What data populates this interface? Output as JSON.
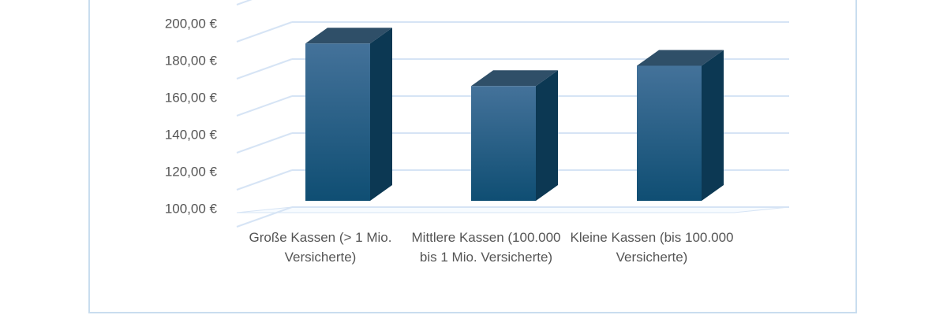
{
  "chart_data": {
    "type": "bar3d",
    "categories": [
      "Große Kassen (> 1 Mio. Versicherte)",
      "Mittlere Kassen (100.000 bis 1 Mio. Versicherte)",
      "Kleine Kassen (bis 100.000 Versicherte)"
    ],
    "values": [
      185,
      162,
      173
    ],
    "color": "#1a5a82",
    "ylim": [
      100,
      220
    ],
    "yticks": [
      {
        "value": 100,
        "label": "100,00 €"
      },
      {
        "value": 120,
        "label": "120,00 €"
      },
      {
        "value": 140,
        "label": "140,00 €"
      },
      {
        "value": 160,
        "label": "160,00 €"
      },
      {
        "value": 180,
        "label": "180,00 €"
      },
      {
        "value": 200,
        "label": "200,00 €"
      }
    ],
    "grid": true
  }
}
